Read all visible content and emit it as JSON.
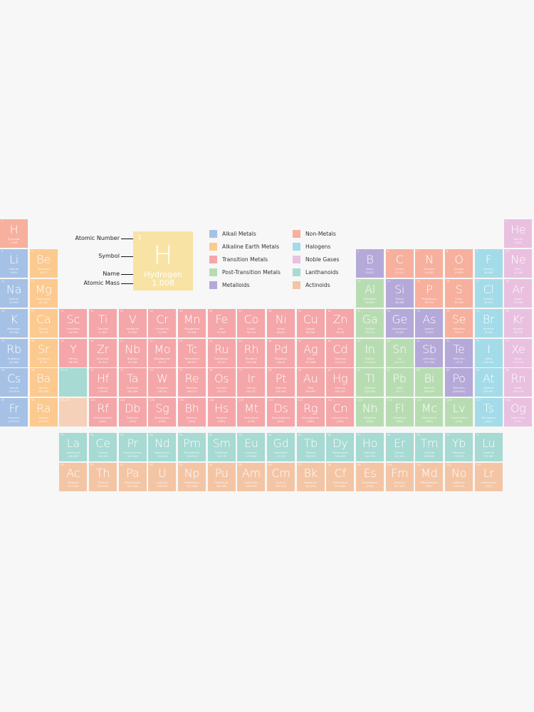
{
  "key": {
    "labels": {
      "atomic_number": "Atomic Number",
      "symbol": "Symbol",
      "name": "Name",
      "atomic_mass": "Atomic Mass"
    },
    "sample": {
      "number": "1",
      "symbol": "H",
      "name": "Hydrogen",
      "mass": "1.008",
      "color": "#f8e3a4"
    }
  },
  "legend": [
    {
      "id": "alkali",
      "label": "Alkali Metals",
      "color": "#a6c1e6"
    },
    {
      "id": "alkaline",
      "label": "Alkaline Earth Metals",
      "color": "#fcc98f"
    },
    {
      "id": "transition",
      "label": "Transition Metals",
      "color": "#f4a6a9"
    },
    {
      "id": "post",
      "label": "Post-Transition Metals",
      "color": "#b8dcb2"
    },
    {
      "id": "metalloid",
      "label": "Metalloids",
      "color": "#b4a9d8"
    },
    {
      "id": "nonmetal",
      "label": "Non-Metals",
      "color": "#f6b09d"
    },
    {
      "id": "halogen",
      "label": "Halogens",
      "color": "#a4dbe8"
    },
    {
      "id": "noble",
      "label": "Noble Gases",
      "color": "#e9c0e0"
    },
    {
      "id": "lanthanoid",
      "label": "Lanthanoids",
      "color": "#a6dad3"
    },
    {
      "id": "actinoid",
      "label": "Actinoids",
      "color": "#f4c5a4"
    }
  ],
  "placeholders": [
    {
      "label": "57-71",
      "row": 6,
      "col": 3,
      "cat": "lanthanoid"
    },
    {
      "label": "89-103",
      "row": 7,
      "col": 3,
      "cat": "actinoid"
    }
  ],
  "elements": [
    {
      "n": 1,
      "s": "H",
      "name": "Hydrogen",
      "m": "1.008",
      "row": 1,
      "col": 1,
      "cat": "nonmetal"
    },
    {
      "n": 2,
      "s": "He",
      "name": "Helium",
      "m": "4.003",
      "row": 1,
      "col": 18,
      "cat": "noble"
    },
    {
      "n": 3,
      "s": "Li",
      "name": "Lithium",
      "m": "6.941",
      "row": 2,
      "col": 1,
      "cat": "alkali"
    },
    {
      "n": 4,
      "s": "Be",
      "name": "Beryllium",
      "m": "9.012",
      "row": 2,
      "col": 2,
      "cat": "alkaline"
    },
    {
      "n": 5,
      "s": "B",
      "name": "Boron",
      "m": "10.811",
      "row": 2,
      "col": 13,
      "cat": "metalloid"
    },
    {
      "n": 6,
      "s": "C",
      "name": "Carbon",
      "m": "12.011",
      "row": 2,
      "col": 14,
      "cat": "nonmetal"
    },
    {
      "n": 7,
      "s": "N",
      "name": "Nitrogen",
      "m": "14.007",
      "row": 2,
      "col": 15,
      "cat": "nonmetal"
    },
    {
      "n": 8,
      "s": "O",
      "name": "Oxygen",
      "m": "15.999",
      "row": 2,
      "col": 16,
      "cat": "nonmetal"
    },
    {
      "n": 9,
      "s": "F",
      "name": "Fluorine",
      "m": "18.998",
      "row": 2,
      "col": 17,
      "cat": "halogen"
    },
    {
      "n": 10,
      "s": "Ne",
      "name": "Neon",
      "m": "20.180",
      "row": 2,
      "col": 18,
      "cat": "noble"
    },
    {
      "n": 11,
      "s": "Na",
      "name": "Sodium",
      "m": "22.990",
      "row": 3,
      "col": 1,
      "cat": "alkali"
    },
    {
      "n": 12,
      "s": "Mg",
      "name": "Magnesium",
      "m": "24.305",
      "row": 3,
      "col": 2,
      "cat": "alkaline"
    },
    {
      "n": 13,
      "s": "Al",
      "name": "Aluminum",
      "m": "26.982",
      "row": 3,
      "col": 13,
      "cat": "post"
    },
    {
      "n": 14,
      "s": "Si",
      "name": "Silicon",
      "m": "28.086",
      "row": 3,
      "col": 14,
      "cat": "metalloid"
    },
    {
      "n": 15,
      "s": "P",
      "name": "Phosphorus",
      "m": "30.974",
      "row": 3,
      "col": 15,
      "cat": "nonmetal"
    },
    {
      "n": 16,
      "s": "S",
      "name": "Sulfur",
      "m": "32.066",
      "row": 3,
      "col": 16,
      "cat": "nonmetal"
    },
    {
      "n": 17,
      "s": "Cl",
      "name": "Chlorine",
      "m": "35.453",
      "row": 3,
      "col": 17,
      "cat": "halogen"
    },
    {
      "n": 18,
      "s": "Ar",
      "name": "Argon",
      "m": "39.948",
      "row": 3,
      "col": 18,
      "cat": "noble"
    },
    {
      "n": 19,
      "s": "K",
      "name": "Potassium",
      "m": "39.098",
      "row": 4,
      "col": 1,
      "cat": "alkali"
    },
    {
      "n": 20,
      "s": "Ca",
      "name": "Calcium",
      "m": "40.078",
      "row": 4,
      "col": 2,
      "cat": "alkaline"
    },
    {
      "n": 21,
      "s": "Sc",
      "name": "Scandium",
      "m": "44.956",
      "row": 4,
      "col": 3,
      "cat": "transition"
    },
    {
      "n": 22,
      "s": "Ti",
      "name": "Titanium",
      "m": "47.867",
      "row": 4,
      "col": 4,
      "cat": "transition"
    },
    {
      "n": 23,
      "s": "V",
      "name": "Vanadium",
      "m": "50.942",
      "row": 4,
      "col": 5,
      "cat": "transition"
    },
    {
      "n": 24,
      "s": "Cr",
      "name": "Chromium",
      "m": "51.996",
      "row": 4,
      "col": 6,
      "cat": "transition"
    },
    {
      "n": 25,
      "s": "Mn",
      "name": "Manganese",
      "m": "54.938",
      "row": 4,
      "col": 7,
      "cat": "transition"
    },
    {
      "n": 26,
      "s": "Fe",
      "name": "Iron",
      "m": "55.845",
      "row": 4,
      "col": 8,
      "cat": "transition"
    },
    {
      "n": 27,
      "s": "Co",
      "name": "Cobalt",
      "m": "58.933",
      "row": 4,
      "col": 9,
      "cat": "transition"
    },
    {
      "n": 28,
      "s": "Ni",
      "name": "Nickel",
      "m": "58.693",
      "row": 4,
      "col": 10,
      "cat": "transition"
    },
    {
      "n": 29,
      "s": "Cu",
      "name": "Copper",
      "m": "63.546",
      "row": 4,
      "col": 11,
      "cat": "transition"
    },
    {
      "n": 30,
      "s": "Zn",
      "name": "Zinc",
      "m": "65.38",
      "row": 4,
      "col": 12,
      "cat": "transition"
    },
    {
      "n": 31,
      "s": "Ga",
      "name": "Gallium",
      "m": "69.723",
      "row": 4,
      "col": 13,
      "cat": "post"
    },
    {
      "n": 32,
      "s": "Ge",
      "name": "Germanium",
      "m": "72.631",
      "row": 4,
      "col": 14,
      "cat": "metalloid"
    },
    {
      "n": 33,
      "s": "As",
      "name": "Arsenic",
      "m": "74.922",
      "row": 4,
      "col": 15,
      "cat": "metalloid"
    },
    {
      "n": 34,
      "s": "Se",
      "name": "Selenium",
      "m": "78.972",
      "row": 4,
      "col": 16,
      "cat": "nonmetal"
    },
    {
      "n": 35,
      "s": "Br",
      "name": "Bromine",
      "m": "79.904",
      "row": 4,
      "col": 17,
      "cat": "halogen"
    },
    {
      "n": 36,
      "s": "Kr",
      "name": "Krypton",
      "m": "83.798",
      "row": 4,
      "col": 18,
      "cat": "noble"
    },
    {
      "n": 37,
      "s": "Rb",
      "name": "Rubidium",
      "m": "84.468",
      "row": 5,
      "col": 1,
      "cat": "alkali"
    },
    {
      "n": 38,
      "s": "Sr",
      "name": "Strontium",
      "m": "87.62",
      "row": 5,
      "col": 2,
      "cat": "alkaline"
    },
    {
      "n": 39,
      "s": "Y",
      "name": "Yttrium",
      "m": "88.906",
      "row": 5,
      "col": 3,
      "cat": "transition"
    },
    {
      "n": 40,
      "s": "Zr",
      "name": "Zirconium",
      "m": "91.224",
      "row": 5,
      "col": 4,
      "cat": "transition"
    },
    {
      "n": 41,
      "s": "Nb",
      "name": "Niobium",
      "m": "92.906",
      "row": 5,
      "col": 5,
      "cat": "transition"
    },
    {
      "n": 42,
      "s": "Mo",
      "name": "Molybdenum",
      "m": "95.95",
      "row": 5,
      "col": 6,
      "cat": "transition"
    },
    {
      "n": 43,
      "s": "Tc",
      "name": "Technetium",
      "m": "98.907",
      "row": 5,
      "col": 7,
      "cat": "transition"
    },
    {
      "n": 44,
      "s": "Ru",
      "name": "Ruthenium",
      "m": "101.07",
      "row": 5,
      "col": 8,
      "cat": "transition"
    },
    {
      "n": 45,
      "s": "Rh",
      "name": "Rhodium",
      "m": "102.906",
      "row": 5,
      "col": 9,
      "cat": "transition"
    },
    {
      "n": 46,
      "s": "Pd",
      "name": "Palladium",
      "m": "106.42",
      "row": 5,
      "col": 10,
      "cat": "transition"
    },
    {
      "n": 47,
      "s": "Ag",
      "name": "Silver",
      "m": "107.868",
      "row": 5,
      "col": 11,
      "cat": "transition"
    },
    {
      "n": 48,
      "s": "Cd",
      "name": "Cadmium",
      "m": "112.414",
      "row": 5,
      "col": 12,
      "cat": "transition"
    },
    {
      "n": 49,
      "s": "In",
      "name": "Indium",
      "m": "114.818",
      "row": 5,
      "col": 13,
      "cat": "post"
    },
    {
      "n": 50,
      "s": "Sn",
      "name": "Tin",
      "m": "118.711",
      "row": 5,
      "col": 14,
      "cat": "post"
    },
    {
      "n": 51,
      "s": "Sb",
      "name": "Antimony",
      "m": "121.760",
      "row": 5,
      "col": 15,
      "cat": "metalloid"
    },
    {
      "n": 52,
      "s": "Te",
      "name": "Tellurium",
      "m": "127.6",
      "row": 5,
      "col": 16,
      "cat": "metalloid"
    },
    {
      "n": 53,
      "s": "I",
      "name": "Iodine",
      "m": "126.904",
      "row": 5,
      "col": 17,
      "cat": "halogen"
    },
    {
      "n": 54,
      "s": "Xe",
      "name": "Xenon",
      "m": "131.294",
      "row": 5,
      "col": 18,
      "cat": "noble"
    },
    {
      "n": 55,
      "s": "Cs",
      "name": "Cesium",
      "m": "132.905",
      "row": 6,
      "col": 1,
      "cat": "alkali"
    },
    {
      "n": 56,
      "s": "Ba",
      "name": "Barium",
      "m": "137.328",
      "row": 6,
      "col": 2,
      "cat": "alkaline"
    },
    {
      "n": 72,
      "s": "Hf",
      "name": "Hafnium",
      "m": "178.49",
      "row": 6,
      "col": 4,
      "cat": "transition"
    },
    {
      "n": 73,
      "s": "Ta",
      "name": "Tantalum",
      "m": "180.948",
      "row": 6,
      "col": 5,
      "cat": "transition"
    },
    {
      "n": 74,
      "s": "W",
      "name": "Tungsten",
      "m": "183.84",
      "row": 6,
      "col": 6,
      "cat": "transition"
    },
    {
      "n": 75,
      "s": "Re",
      "name": "Rhenium",
      "m": "186.207",
      "row": 6,
      "col": 7,
      "cat": "transition"
    },
    {
      "n": 76,
      "s": "Os",
      "name": "Osmium",
      "m": "190.23",
      "row": 6,
      "col": 8,
      "cat": "transition"
    },
    {
      "n": 77,
      "s": "Ir",
      "name": "Iridium",
      "m": "192.217",
      "row": 6,
      "col": 9,
      "cat": "transition"
    },
    {
      "n": 78,
      "s": "Pt",
      "name": "Platinum",
      "m": "195.085",
      "row": 6,
      "col": 10,
      "cat": "transition"
    },
    {
      "n": 79,
      "s": "Au",
      "name": "Gold",
      "m": "196.967",
      "row": 6,
      "col": 11,
      "cat": "transition"
    },
    {
      "n": 80,
      "s": "Hg",
      "name": "Mercury",
      "m": "200.592",
      "row": 6,
      "col": 12,
      "cat": "transition"
    },
    {
      "n": 81,
      "s": "Tl",
      "name": "Thallium",
      "m": "204.383",
      "row": 6,
      "col": 13,
      "cat": "post"
    },
    {
      "n": 82,
      "s": "Pb",
      "name": "Lead",
      "m": "207.2",
      "row": 6,
      "col": 14,
      "cat": "post"
    },
    {
      "n": 83,
      "s": "Bi",
      "name": "Bismuth",
      "m": "208.980",
      "row": 6,
      "col": 15,
      "cat": "post"
    },
    {
      "n": 84,
      "s": "Po",
      "name": "Polonium",
      "m": "[208.982]",
      "row": 6,
      "col": 16,
      "cat": "metalloid"
    },
    {
      "n": 85,
      "s": "At",
      "name": "Astatine",
      "m": "209.987",
      "row": 6,
      "col": 17,
      "cat": "halogen"
    },
    {
      "n": 86,
      "s": "Rn",
      "name": "Radon",
      "m": "222.018",
      "row": 6,
      "col": 18,
      "cat": "noble"
    },
    {
      "n": 87,
      "s": "Fr",
      "name": "Francium",
      "m": "223.020",
      "row": 7,
      "col": 1,
      "cat": "alkali"
    },
    {
      "n": 88,
      "s": "Ra",
      "name": "Radium",
      "m": "226.025",
      "row": 7,
      "col": 2,
      "cat": "alkaline"
    },
    {
      "n": 104,
      "s": "Rf",
      "name": "Rutherfordium",
      "m": "[261]",
      "row": 7,
      "col": 4,
      "cat": "transition"
    },
    {
      "n": 105,
      "s": "Db",
      "name": "Dubnium",
      "m": "[262]",
      "row": 7,
      "col": 5,
      "cat": "transition"
    },
    {
      "n": 106,
      "s": "Sg",
      "name": "Seaborgium",
      "m": "[266]",
      "row": 7,
      "col": 6,
      "cat": "transition"
    },
    {
      "n": 107,
      "s": "Bh",
      "name": "Bohrium",
      "m": "[264]",
      "row": 7,
      "col": 7,
      "cat": "transition"
    },
    {
      "n": 108,
      "s": "Hs",
      "name": "Hassium",
      "m": "[269]",
      "row": 7,
      "col": 8,
      "cat": "transition"
    },
    {
      "n": 109,
      "s": "Mt",
      "name": "Meitnerium",
      "m": "[278]",
      "row": 7,
      "col": 9,
      "cat": "transition"
    },
    {
      "n": 110,
      "s": "Ds",
      "name": "Darmstadtium",
      "m": "[281]",
      "row": 7,
      "col": 10,
      "cat": "transition"
    },
    {
      "n": 111,
      "s": "Rg",
      "name": "Roentgenium",
      "m": "[280]",
      "row": 7,
      "col": 11,
      "cat": "transition"
    },
    {
      "n": 112,
      "s": "Cn",
      "name": "Copernicium",
      "m": "[285]",
      "row": 7,
      "col": 12,
      "cat": "transition"
    },
    {
      "n": 113,
      "s": "Nh",
      "name": "Nihonium",
      "m": "[286]",
      "row": 7,
      "col": 13,
      "cat": "post"
    },
    {
      "n": 114,
      "s": "Fl",
      "name": "Flerovium",
      "m": "[289]",
      "row": 7,
      "col": 14,
      "cat": "post"
    },
    {
      "n": 115,
      "s": "Mc",
      "name": "Moscovium",
      "m": "[289]",
      "row": 7,
      "col": 15,
      "cat": "post"
    },
    {
      "n": 116,
      "s": "Lv",
      "name": "Livermorium",
      "m": "[293]",
      "row": 7,
      "col": 16,
      "cat": "post"
    },
    {
      "n": 117,
      "s": "Ts",
      "name": "Tennessine",
      "m": "[294]",
      "row": 7,
      "col": 17,
      "cat": "halogen"
    },
    {
      "n": 118,
      "s": "Og",
      "name": "Oganesson",
      "m": "[294]",
      "row": 7,
      "col": 18,
      "cat": "noble"
    },
    {
      "n": 57,
      "s": "La",
      "name": "Lanthanum",
      "m": "138.905",
      "row": 9,
      "col": 3,
      "cat": "lanthanoid"
    },
    {
      "n": 58,
      "s": "Ce",
      "name": "Cerium",
      "m": "140.116",
      "row": 9,
      "col": 4,
      "cat": "lanthanoid"
    },
    {
      "n": 59,
      "s": "Pr",
      "name": "Praseodymium",
      "m": "140.908",
      "row": 9,
      "col": 5,
      "cat": "lanthanoid"
    },
    {
      "n": 60,
      "s": "Nd",
      "name": "Neodymium",
      "m": "144.243",
      "row": 9,
      "col": 6,
      "cat": "lanthanoid"
    },
    {
      "n": 61,
      "s": "Pm",
      "name": "Promethium",
      "m": "144.913",
      "row": 9,
      "col": 7,
      "cat": "lanthanoid"
    },
    {
      "n": 62,
      "s": "Sm",
      "name": "Samarium",
      "m": "150.36",
      "row": 9,
      "col": 8,
      "cat": "lanthanoid"
    },
    {
      "n": 63,
      "s": "Eu",
      "name": "Europium",
      "m": "151.964",
      "row": 9,
      "col": 9,
      "cat": "lanthanoid"
    },
    {
      "n": 64,
      "s": "Gd",
      "name": "Gadolinium",
      "m": "157.25",
      "row": 9,
      "col": 10,
      "cat": "lanthanoid"
    },
    {
      "n": 65,
      "s": "Tb",
      "name": "Terbium",
      "m": "158.925",
      "row": 9,
      "col": 11,
      "cat": "lanthanoid"
    },
    {
      "n": 66,
      "s": "Dy",
      "name": "Dysprosium",
      "m": "162.500",
      "row": 9,
      "col": 12,
      "cat": "lanthanoid"
    },
    {
      "n": 67,
      "s": "Ho",
      "name": "Holmium",
      "m": "164.930",
      "row": 9,
      "col": 13,
      "cat": "lanthanoid"
    },
    {
      "n": 68,
      "s": "Er",
      "name": "Erbium",
      "m": "167.259",
      "row": 9,
      "col": 14,
      "cat": "lanthanoid"
    },
    {
      "n": 69,
      "s": "Tm",
      "name": "Thulium",
      "m": "168.934",
      "row": 9,
      "col": 15,
      "cat": "lanthanoid"
    },
    {
      "n": 70,
      "s": "Yb",
      "name": "Ytterbium",
      "m": "173.055",
      "row": 9,
      "col": 16,
      "cat": "lanthanoid"
    },
    {
      "n": 71,
      "s": "Lu",
      "name": "Lutetium",
      "m": "174.967",
      "row": 9,
      "col": 17,
      "cat": "lanthanoid"
    },
    {
      "n": 89,
      "s": "Ac",
      "name": "Actinium",
      "m": "227.028",
      "row": 10,
      "col": 3,
      "cat": "actinoid"
    },
    {
      "n": 90,
      "s": "Th",
      "name": "Thorium",
      "m": "232.038",
      "row": 10,
      "col": 4,
      "cat": "actinoid"
    },
    {
      "n": 91,
      "s": "Pa",
      "name": "Protactinium",
      "m": "231.036",
      "row": 10,
      "col": 5,
      "cat": "actinoid"
    },
    {
      "n": 92,
      "s": "U",
      "name": "Uranium",
      "m": "238.029",
      "row": 10,
      "col": 6,
      "cat": "actinoid"
    },
    {
      "n": 93,
      "s": "Np",
      "name": "Neptunium",
      "m": "237.048",
      "row": 10,
      "col": 7,
      "cat": "actinoid"
    },
    {
      "n": 94,
      "s": "Pu",
      "name": "Plutonium",
      "m": "244.064",
      "row": 10,
      "col": 8,
      "cat": "actinoid"
    },
    {
      "n": 95,
      "s": "Am",
      "name": "Americium",
      "m": "243.061",
      "row": 10,
      "col": 9,
      "cat": "actinoid"
    },
    {
      "n": 96,
      "s": "Cm",
      "name": "Curium",
      "m": "247.070",
      "row": 10,
      "col": 10,
      "cat": "actinoid"
    },
    {
      "n": 97,
      "s": "Bk",
      "name": "Berkelium",
      "m": "247.070",
      "row": 10,
      "col": 11,
      "cat": "actinoid"
    },
    {
      "n": 98,
      "s": "Cf",
      "name": "Californium",
      "m": "251.080",
      "row": 10,
      "col": 12,
      "cat": "actinoid"
    },
    {
      "n": 99,
      "s": "Es",
      "name": "Einsteinium",
      "m": "[254]",
      "row": 10,
      "col": 13,
      "cat": "actinoid"
    },
    {
      "n": 100,
      "s": "Fm",
      "name": "Fermium",
      "m": "257.095",
      "row": 10,
      "col": 14,
      "cat": "actinoid"
    },
    {
      "n": 101,
      "s": "Md",
      "name": "Mendelevium",
      "m": "258.1",
      "row": 10,
      "col": 15,
      "cat": "actinoid"
    },
    {
      "n": 102,
      "s": "No",
      "name": "Nobelium",
      "m": "259.101",
      "row": 10,
      "col": 16,
      "cat": "actinoid"
    },
    {
      "n": 103,
      "s": "Lr",
      "name": "Lawrencium",
      "m": "[262]",
      "row": 10,
      "col": 17,
      "cat": "actinoid"
    }
  ]
}
